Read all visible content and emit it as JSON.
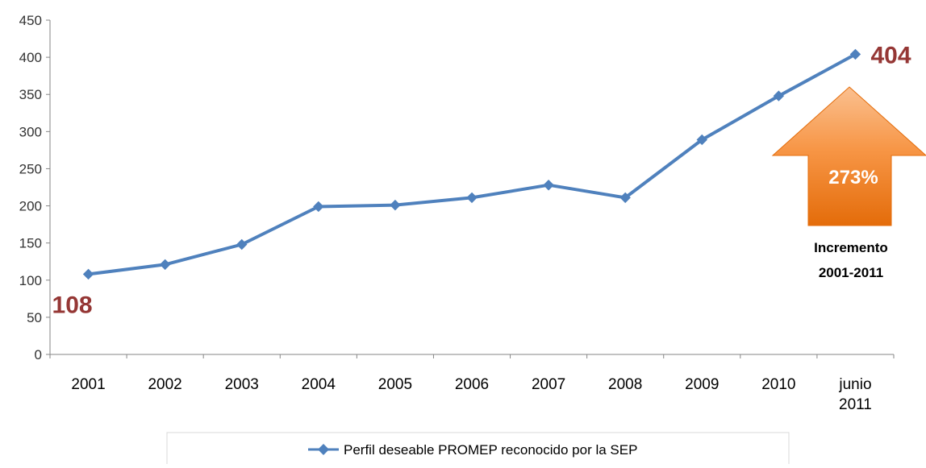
{
  "chart_data": {
    "type": "line",
    "categories": [
      "2001",
      "2002",
      "2003",
      "2004",
      "2005",
      "2006",
      "2007",
      "2008",
      "2009",
      "2010",
      "junio 2011"
    ],
    "series": [
      {
        "name": "Perfil deseable PROMEP reconocido por la SEP",
        "color": "#4F81BD",
        "values": [
          108,
          121,
          148,
          199,
          201,
          211,
          228,
          211,
          289,
          348,
          404
        ]
      }
    ],
    "ylim": [
      0,
      450
    ],
    "yticks": [
      0,
      50,
      100,
      150,
      200,
      250,
      300,
      350,
      400,
      450
    ],
    "grid": false,
    "legend": "bottom",
    "annotations": {
      "start_label": "108",
      "end_label": "404",
      "increase_percent": "273%",
      "increase_caption_line1": "Incremento",
      "increase_caption_line2": "2001-2011",
      "label_color": "#953735",
      "arrow_color": "#F79646"
    }
  }
}
